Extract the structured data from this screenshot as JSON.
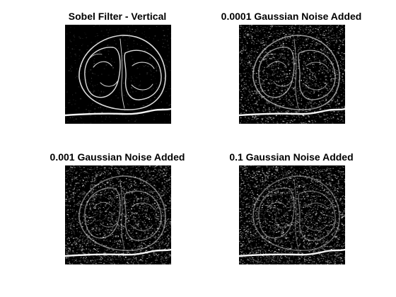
{
  "figure": {
    "background": "#ffffff",
    "title_color": "#000000",
    "panels": [
      {
        "title": "Sobel Filter - Vertical",
        "image": "vertical-sobel-edge-map",
        "noise": "none"
      },
      {
        "title": "0.0001 Gaussian Noise Added",
        "image": "sobel-edge-map-with-gaussian-noise",
        "noise": "low"
      },
      {
        "title": "0.001 Gaussian Noise Added",
        "image": "sobel-edge-map-with-gaussian-noise",
        "noise": "medium"
      },
      {
        "title": "0.1 Gaussian Noise Added",
        "image": "sobel-edge-map-with-gaussian-noise",
        "noise": "high"
      }
    ]
  }
}
